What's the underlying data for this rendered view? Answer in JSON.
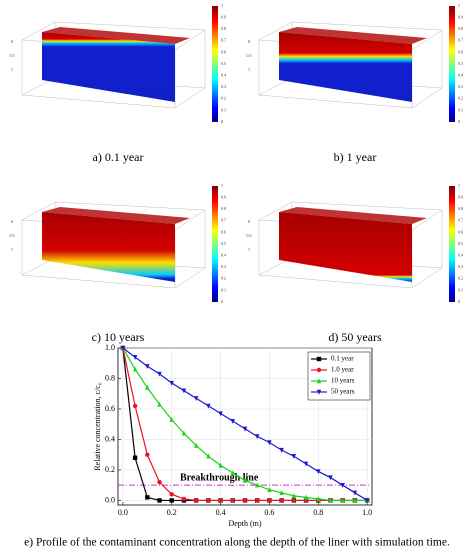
{
  "panels": [
    {
      "caption": "a) 0.1 year"
    },
    {
      "caption": "b) 1 year"
    },
    {
      "caption": "c) 10 years"
    },
    {
      "caption": "d) 50 years"
    }
  ],
  "colorbar_ticks": [
    1,
    0.9,
    0.8,
    0.7,
    0.6,
    0.5,
    0.4,
    0.3,
    0.2,
    0.1,
    0
  ],
  "depth_ticks": [
    0,
    0.5,
    1
  ],
  "chart_data": {
    "type": "line",
    "caption": "e) Profile of the contaminant concentration along the depth of the liner with simulation time.",
    "xlabel": "Depth (m)",
    "ylabel": "Relative concentration, c/c₀",
    "x": [
      0,
      0.05,
      0.1,
      0.15,
      0.2,
      0.25,
      0.3,
      0.35,
      0.4,
      0.45,
      0.5,
      0.55,
      0.6,
      0.65,
      0.7,
      0.75,
      0.8,
      0.85,
      0.9,
      0.95,
      1.0
    ],
    "series": [
      {
        "name": "0.1 year",
        "color": "#000000",
        "marker": "square",
        "values": [
          1,
          0.28,
          0.02,
          0,
          0,
          0,
          0,
          0,
          0,
          0,
          0,
          0,
          0,
          0,
          0,
          0,
          0,
          0,
          0,
          0,
          0
        ]
      },
      {
        "name": "1.0 year",
        "color": "#e8141e",
        "marker": "circle",
        "values": [
          1,
          0.62,
          0.3,
          0.12,
          0.04,
          0.01,
          0,
          0,
          0,
          0,
          0,
          0,
          0,
          0,
          0,
          0,
          0,
          0,
          0,
          0,
          0
        ]
      },
      {
        "name": "10 years",
        "color": "#19d419",
        "marker": "triangle-up",
        "values": [
          1,
          0.86,
          0.74,
          0.63,
          0.53,
          0.44,
          0.36,
          0.29,
          0.23,
          0.18,
          0.13,
          0.1,
          0.07,
          0.05,
          0.03,
          0.02,
          0.01,
          0,
          0,
          0,
          0
        ]
      },
      {
        "name": "50 years",
        "color": "#1a1ad4",
        "marker": "triangle-down",
        "values": [
          1,
          0.94,
          0.88,
          0.83,
          0.77,
          0.72,
          0.67,
          0.62,
          0.57,
          0.52,
          0.47,
          0.42,
          0.38,
          0.33,
          0.29,
          0.24,
          0.19,
          0.15,
          0.1,
          0.05,
          0
        ]
      }
    ],
    "threshold": 0.1,
    "threshold_label": "Breakthrough line",
    "threshold_color": "#cc33cc",
    "xlim": [
      -0.02,
      1.02
    ],
    "ylim": [
      -0.03,
      1.0
    ],
    "xticks": [
      {
        "value": 0,
        "label": "0.0"
      },
      0.2,
      0.4,
      0.6,
      0.8,
      {
        "value": 1,
        "label": "1.0"
      }
    ],
    "yticks": [
      {
        "value": 0,
        "label": "0.0"
      },
      0.2,
      0.4,
      0.6,
      0.8,
      {
        "value": 1,
        "label": "1.0"
      }
    ],
    "grid": true,
    "legend": "upper right"
  }
}
